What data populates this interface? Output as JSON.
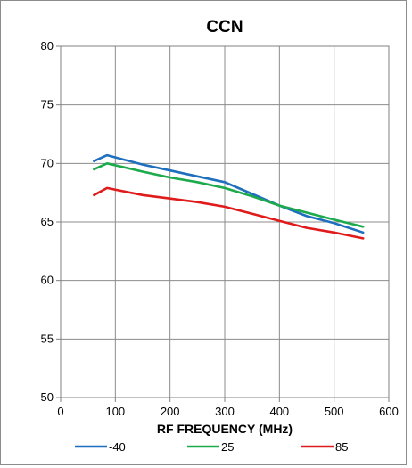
{
  "chart_data": {
    "type": "line",
    "title": "CCN",
    "xlabel": "RF FREQUENCY (MHz)",
    "ylabel": "",
    "xlim": [
      0,
      600
    ],
    "ylim": [
      50,
      80
    ],
    "xticks": [
      0,
      100,
      200,
      300,
      400,
      500,
      600
    ],
    "yticks": [
      50,
      55,
      60,
      65,
      70,
      75,
      80
    ],
    "grid": true,
    "legend_position": "bottom",
    "series": [
      {
        "name": "-40",
        "color": "#1f6fbf",
        "x": [
          61,
          85,
          150,
          200,
          250,
          300,
          350,
          400,
          450,
          500,
          553
        ],
        "y": [
          70.2,
          70.7,
          69.9,
          69.4,
          68.9,
          68.4,
          67.4,
          66.4,
          65.5,
          64.9,
          64.1
        ]
      },
      {
        "name": "25",
        "color": "#1daa4d",
        "x": [
          61,
          85,
          150,
          200,
          250,
          300,
          350,
          400,
          450,
          500,
          553
        ],
        "y": [
          69.5,
          70.0,
          69.3,
          68.8,
          68.4,
          67.9,
          67.2,
          66.4,
          65.8,
          65.2,
          64.6
        ]
      },
      {
        "name": "85",
        "color": "#e01b1b",
        "x": [
          61,
          85,
          150,
          200,
          250,
          300,
          350,
          400,
          450,
          500,
          553
        ],
        "y": [
          67.3,
          67.9,
          67.3,
          67.0,
          66.7,
          66.3,
          65.7,
          65.1,
          64.5,
          64.1,
          63.6
        ]
      }
    ]
  }
}
